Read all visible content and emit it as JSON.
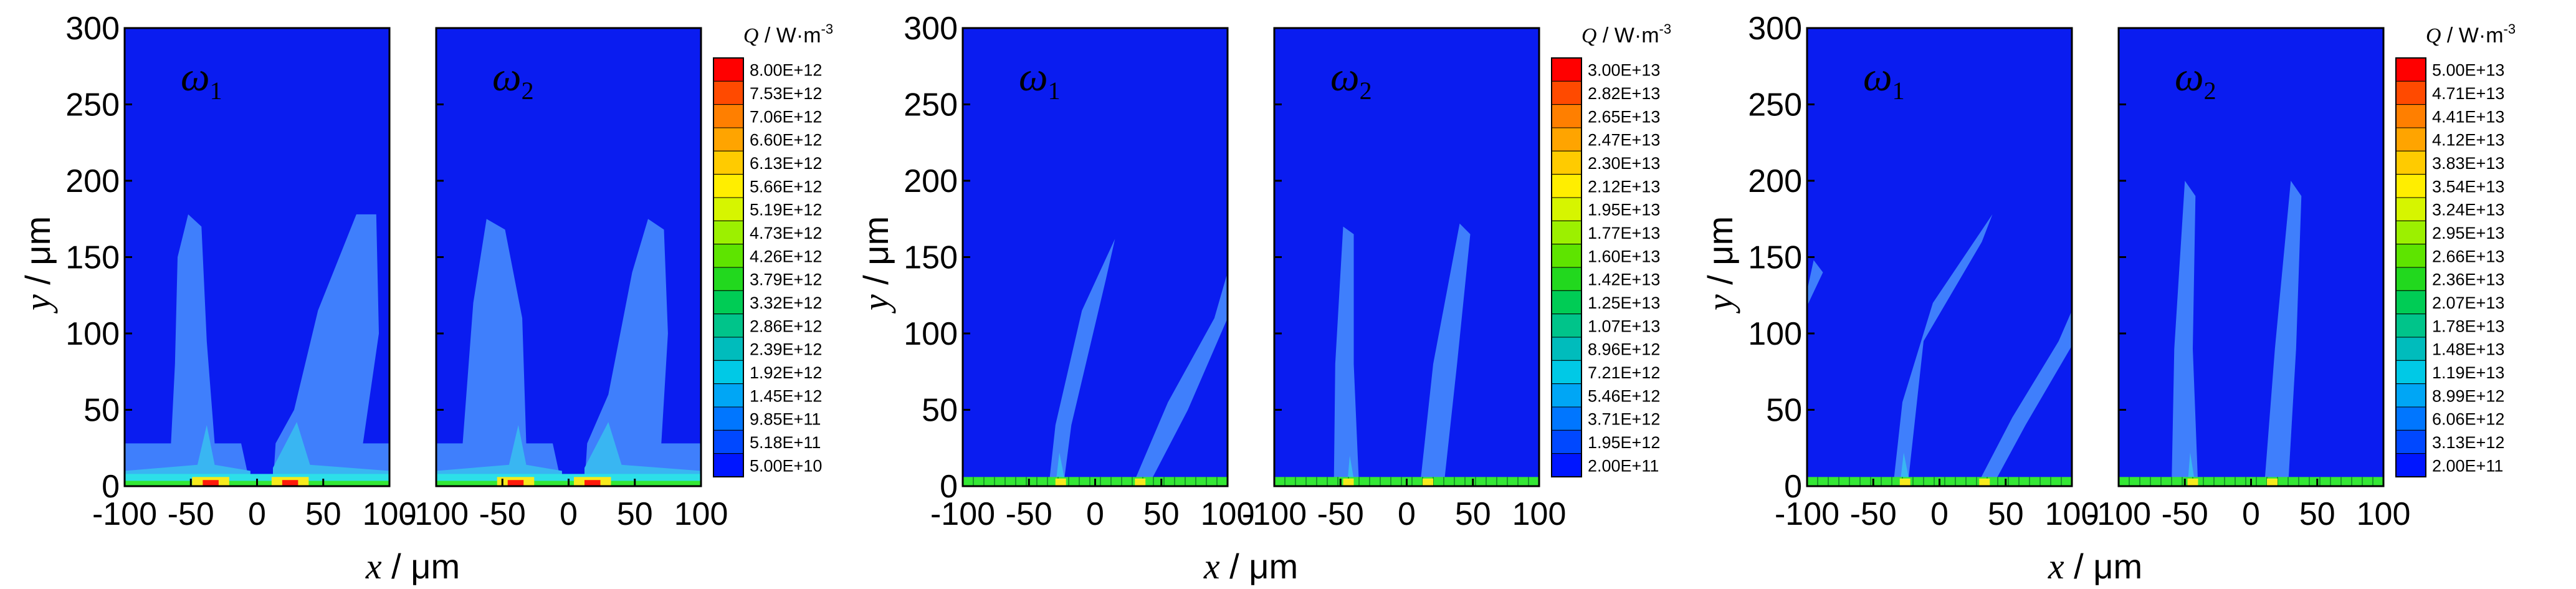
{
  "chart_data": [
    {
      "type": "heatmap",
      "quantity_symbol": "Q",
      "quantity_unit": " / W·m",
      "quantity_unit_exp": "-3",
      "xlabel_symbol": "x",
      "xlabel_unit": " / μm",
      "ylabel_symbol": "y",
      "ylabel_unit": " / μm",
      "xlim": [
        -100,
        100
      ],
      "ylim": [
        0,
        300
      ],
      "x_ticks": [
        -100,
        -50,
        0,
        50,
        100
      ],
      "y_ticks": [
        0,
        50,
        100,
        150,
        200,
        250,
        300
      ],
      "panels": [
        {
          "name": "ω",
          "sub": "1"
        },
        {
          "name": "ω",
          "sub": "2"
        }
      ],
      "colorbar": [
        "8.00E+12",
        "7.53E+12",
        "7.06E+12",
        "6.60E+12",
        "6.13E+12",
        "5.66E+12",
        "5.19E+12",
        "4.73E+12",
        "4.26E+12",
        "3.79E+12",
        "3.32E+12",
        "2.86E+12",
        "2.39E+12",
        "1.92E+12",
        "1.45E+12",
        "9.85E+11",
        "5.18E+11",
        "5.00E+10"
      ]
    },
    {
      "type": "heatmap",
      "quantity_symbol": "Q",
      "quantity_unit": " / W·m",
      "quantity_unit_exp": "-3",
      "xlabel_symbol": "x",
      "xlabel_unit": " / μm",
      "ylabel_symbol": "y",
      "ylabel_unit": " / μm",
      "xlim": [
        -100,
        100
      ],
      "ylim": [
        0,
        300
      ],
      "x_ticks": [
        -100,
        -50,
        0,
        50,
        100
      ],
      "y_ticks": [
        0,
        50,
        100,
        150,
        200,
        250,
        300
      ],
      "panels": [
        {
          "name": "ω",
          "sub": "1"
        },
        {
          "name": "ω",
          "sub": "2"
        }
      ],
      "colorbar": [
        "3.00E+13",
        "2.82E+13",
        "2.65E+13",
        "2.47E+13",
        "2.30E+13",
        "2.12E+13",
        "1.95E+13",
        "1.77E+13",
        "1.60E+13",
        "1.42E+13",
        "1.25E+13",
        "1.07E+13",
        "8.96E+12",
        "7.21E+12",
        "5.46E+12",
        "3.71E+12",
        "1.95E+12",
        "2.00E+11"
      ]
    },
    {
      "type": "heatmap",
      "quantity_symbol": "Q",
      "quantity_unit": " / W·m",
      "quantity_unit_exp": "-3",
      "xlabel_symbol": "x",
      "xlabel_unit": " / μm",
      "ylabel_symbol": "y",
      "ylabel_unit": " / μm",
      "xlim": [
        -100,
        100
      ],
      "ylim": [
        0,
        300
      ],
      "x_ticks": [
        -100,
        -50,
        0,
        50,
        100
      ],
      "y_ticks": [
        0,
        50,
        100,
        150,
        200,
        250,
        300
      ],
      "panels": [
        {
          "name": "ω",
          "sub": "1"
        },
        {
          "name": "ω",
          "sub": "2"
        }
      ],
      "colorbar": [
        "5.00E+13",
        "4.71E+13",
        "4.41E+13",
        "4.12E+13",
        "3.83E+13",
        "3.54E+13",
        "3.24E+13",
        "2.95E+13",
        "2.66E+13",
        "2.36E+13",
        "2.07E+13",
        "1.78E+13",
        "1.48E+13",
        "1.19E+13",
        "8.99E+12",
        "6.06E+12",
        "3.13E+12",
        "2.00E+11"
      ]
    }
  ],
  "colors": {
    "field_background": "#0a1cf0",
    "contour_light": "#3f7ffc",
    "contour_mid": "#39b6f2",
    "contour_cyan": "#2ce0e8",
    "contour_green": "#34e834",
    "contour_yellow": "#f7ea1c",
    "contour_red": "#ff1a0a",
    "colorbar_scale": [
      "#ff0000",
      "#ff4a00",
      "#ff7f00",
      "#ffa400",
      "#ffcb00",
      "#ffee00",
      "#d6f500",
      "#9cf000",
      "#5ee400",
      "#22d81e",
      "#00cc55",
      "#00c48a",
      "#00bcbc",
      "#00c9e6",
      "#00a6f5",
      "#0076ff",
      "#0048ff",
      "#0016ff"
    ]
  }
}
